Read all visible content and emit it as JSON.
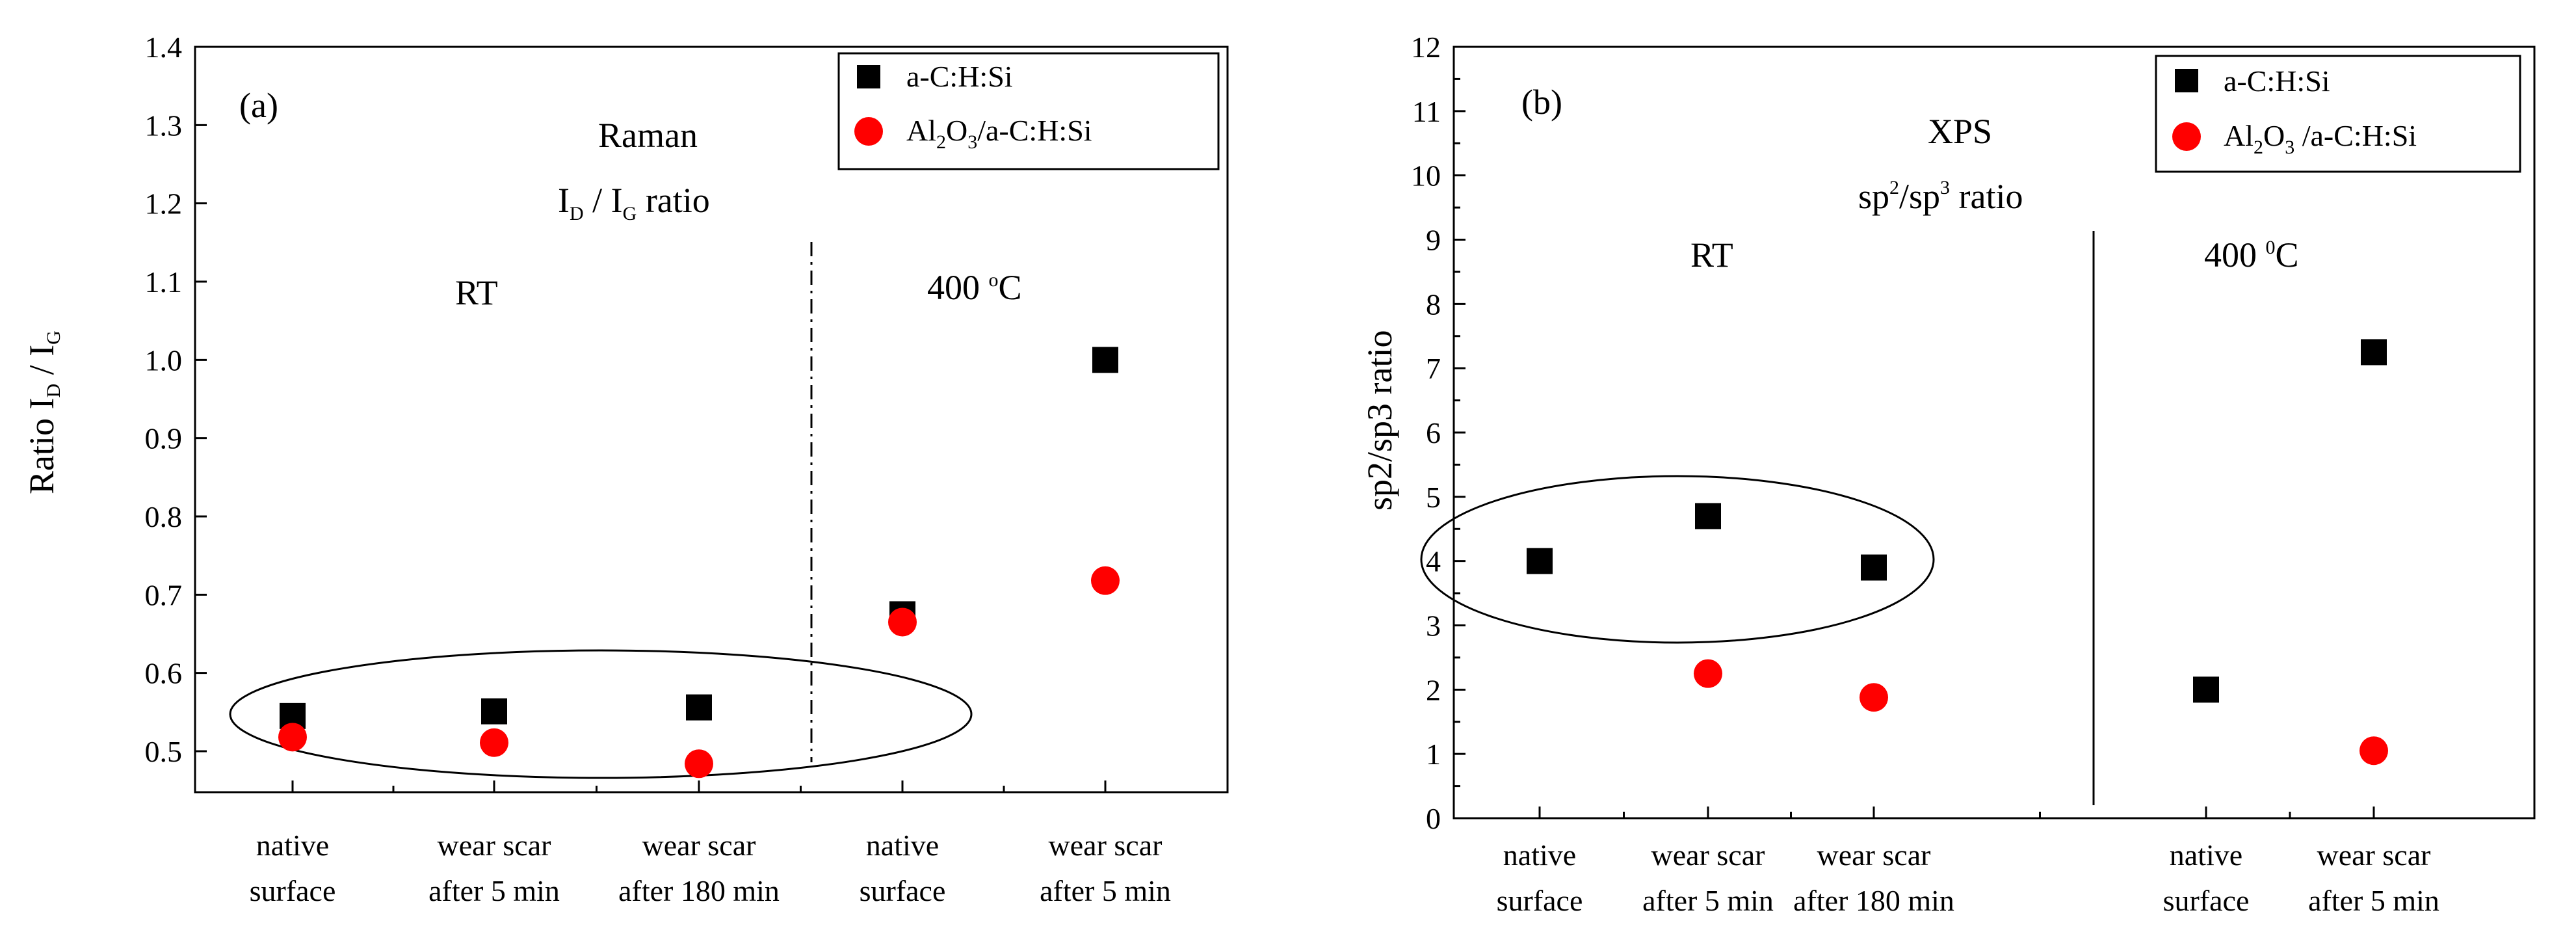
{
  "chart_data": [
    {
      "id": "a",
      "type": "scatter",
      "panel_label": "(a)",
      "ylabel": {
        "main": "Ratio I",
        "sub1": "D",
        "mid": " / I",
        "sub2": "G"
      },
      "ylim": [
        0.45,
        1.4
      ],
      "yticks": [
        "0.5",
        "0.6",
        "0.7",
        "0.8",
        "0.9",
        "1.0",
        "1.1",
        "1.2",
        "1.3",
        "1.4"
      ],
      "ytick_values": [
        0.5,
        0.6,
        0.7,
        0.8,
        0.9,
        1.0,
        1.1,
        1.2,
        1.3,
        1.4
      ],
      "categories": [
        [
          "native",
          "surface"
        ],
        [
          "wear scar",
          "after 5 min"
        ],
        [
          "wear scar",
          "after 180 min"
        ],
        [
          "native",
          "surface"
        ],
        [
          "wear scar",
          "after 5 min"
        ]
      ],
      "series": [
        {
          "name": "a-C:H:Si",
          "marker": "square",
          "color": "#000000",
          "values": [
            0.545,
            0.551,
            0.556,
            0.675,
            1.0
          ]
        },
        {
          "name": "Al2O3/a-C:H:Si",
          "marker": "circle",
          "color": "#ff0000",
          "values": [
            0.518,
            0.511,
            0.484,
            0.665,
            0.718
          ]
        }
      ],
      "legend": {
        "s1": "a-C:H:Si",
        "s2": {
          "p1": "Al",
          "s1": "2",
          "p2": "O",
          "s2": "3",
          "p3": "/a-C:H:Si"
        }
      },
      "annotations": {
        "title1": "Raman",
        "title2": {
          "p1": "I",
          "s1": "D",
          "p2": " / I",
          "s2": "G",
          "p3": " ratio"
        },
        "rt": "RT",
        "hot": {
          "p1": "400 ",
          "sup": "o",
          "p2": "C"
        }
      },
      "separator": "dash-dot"
    },
    {
      "id": "b",
      "type": "scatter",
      "panel_label": "(b)",
      "ylabel": {
        "main": "sp2/sp3 ratio"
      },
      "ylim": [
        0,
        12
      ],
      "yticks": [
        "0",
        "1",
        "2",
        "3",
        "4",
        "5",
        "6",
        "7",
        "8",
        "9",
        "10",
        "11",
        "12"
      ],
      "ytick_values": [
        0,
        1,
        2,
        3,
        4,
        5,
        6,
        7,
        8,
        9,
        10,
        11,
        12
      ],
      "categories": [
        [
          "native",
          "surface"
        ],
        [
          "wear scar",
          "after 5 min"
        ],
        [
          "wear scar",
          "after 180 min"
        ],
        [
          "native",
          "surface"
        ],
        [
          "wear scar",
          "after 5 min"
        ]
      ],
      "series": [
        {
          "name": "a-C:H:Si",
          "marker": "square",
          "color": "#000000",
          "values": [
            4.0,
            4.7,
            3.9,
            2.0,
            7.25
          ]
        },
        {
          "name": "Al2O3 /a-C:H:Si",
          "marker": "circle",
          "color": "#ff0000",
          "values": [
            null,
            2.25,
            1.88,
            null,
            1.05
          ]
        }
      ],
      "legend": {
        "s1": "a-C:H:Si",
        "s2": {
          "p1": "Al",
          "s1": "2",
          "p2": "O",
          "s2": "3",
          "p3": " /a-C:H:Si"
        }
      },
      "annotations": {
        "title1": "XPS",
        "title2": {
          "p1": "sp",
          "sup1": "2",
          "p2": "/sp",
          "sup2": "3",
          "p3": " ratio"
        },
        "rt": "RT",
        "hot": {
          "p1": "400 ",
          "sup": "0",
          "p2": "C"
        }
      },
      "separator": "solid"
    }
  ]
}
